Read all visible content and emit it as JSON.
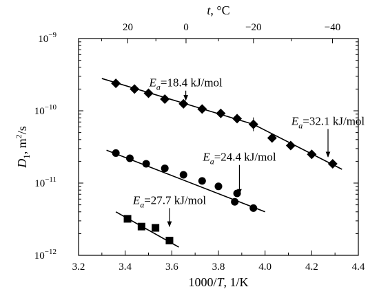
{
  "chart_data": {
    "type": "scatter",
    "x": {
      "label_parts": [
        "1000/",
        "T",
        ", 1/K"
      ],
      "range": [
        3.2,
        4.4
      ],
      "ticks": [
        "3.2",
        "3.4",
        "3.6",
        "3.8",
        "4.0",
        "4.2",
        "4.4"
      ]
    },
    "y": {
      "label_parts": [
        "D",
        "1",
        ", m",
        "2",
        "/s"
      ],
      "scale": "log",
      "range": [
        1e-12,
        1e-09
      ],
      "ticks": [
        {
          "value": 1e-12,
          "base": "10",
          "exp": "−12"
        },
        {
          "value": 1e-11,
          "base": "10",
          "exp": "−11"
        },
        {
          "value": 1e-10,
          "base": "10",
          "exp": "−10"
        },
        {
          "value": 1e-09,
          "base": "10",
          "exp": "−9"
        }
      ]
    },
    "top_axis": {
      "label_parts": [
        "t",
        ", °C"
      ],
      "ticks": [
        20,
        0,
        -20,
        -40
      ]
    },
    "grid": false,
    "legend": null,
    "series": [
      {
        "marker": "diamond",
        "points": [
          [
            3.36,
            2.4e-10
          ],
          [
            3.44,
            2e-10
          ],
          [
            3.5,
            1.75e-10
          ],
          [
            3.57,
            1.45e-10
          ],
          [
            3.65,
            1.25e-10
          ],
          [
            3.73,
            1.06e-10
          ],
          [
            3.81,
            9.2e-11
          ],
          [
            3.88,
            7.8e-11
          ],
          [
            3.95,
            6.5e-11
          ],
          [
            4.03,
            4.2e-11
          ],
          [
            4.11,
            3.3e-11
          ],
          [
            4.2,
            2.5e-11
          ],
          [
            4.29,
            1.85e-11
          ]
        ],
        "fit_lines": [
          {
            "from": [
              3.3,
              2.8e-10
            ],
            "to": [
              3.95,
              6.5e-11
            ]
          },
          {
            "from": [
              3.95,
              6.5e-11
            ],
            "to": [
              4.33,
              1.55e-11
            ]
          }
        ]
      },
      {
        "marker": "circle",
        "points": [
          [
            3.36,
            2.6e-11
          ],
          [
            3.42,
            2.2e-11
          ],
          [
            3.49,
            1.85e-11
          ],
          [
            3.57,
            1.6e-11
          ],
          [
            3.65,
            1.3e-11
          ],
          [
            3.73,
            1.07e-11
          ],
          [
            3.8,
            9e-12
          ],
          [
            3.88,
            7.2e-12
          ],
          [
            3.87,
            5.5e-12
          ],
          [
            3.95,
            4.5e-12
          ]
        ],
        "fit_lines": [
          {
            "from": [
              3.32,
              2.85e-11
            ],
            "to": [
              4.0,
              4e-12
            ]
          }
        ]
      },
      {
        "marker": "square",
        "points": [
          [
            3.41,
            3.2e-12
          ],
          [
            3.47,
            2.5e-12
          ],
          [
            3.53,
            2.4e-12
          ],
          [
            3.59,
            1.6e-12
          ]
        ],
        "fit_lines": [
          {
            "from": [
              3.36,
              4e-12
            ],
            "to": [
              3.63,
              1.3e-12
            ]
          }
        ]
      }
    ],
    "annotations": [
      {
        "pre": "E",
        "sub": "a",
        "post": "=18.4 kJ/mol",
        "arrow_from": [
          3.66,
          1.9e-10
        ],
        "arrow_to": [
          3.66,
          1.4e-10
        ]
      },
      {
        "pre": "E",
        "sub": "a",
        "post": "=32.1 kJ/mol",
        "arrow_from": [
          4.27,
          5.6e-11
        ],
        "arrow_to": [
          4.27,
          2.3e-11
        ]
      },
      {
        "pre": "E",
        "sub": "a",
        "post": "=24.4 kJ/mol",
        "arrow_from": [
          3.89,
          1.78e-11
        ],
        "arrow_to": [
          3.89,
          7e-12
        ]
      },
      {
        "pre": "E",
        "sub": "a",
        "post": "=27.7 kJ/mol",
        "arrow_from": [
          3.59,
          4.5e-12
        ],
        "arrow_to": [
          3.59,
          2.5e-12
        ]
      }
    ]
  }
}
